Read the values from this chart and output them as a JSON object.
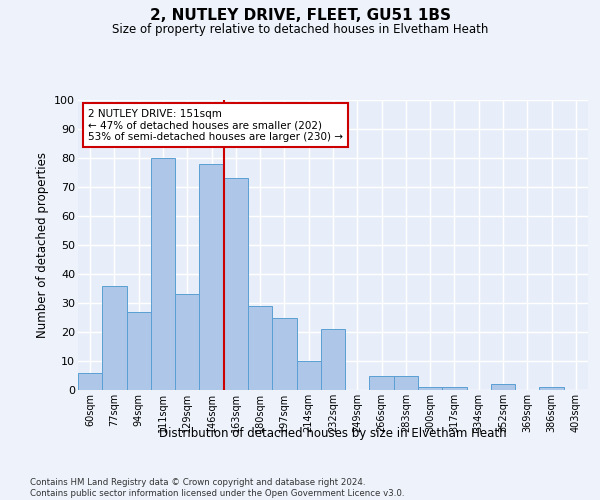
{
  "title1": "2, NUTLEY DRIVE, FLEET, GU51 1BS",
  "title2": "Size of property relative to detached houses in Elvetham Heath",
  "xlabel": "Distribution of detached houses by size in Elvetham Heath",
  "ylabel": "Number of detached properties",
  "bar_labels": [
    "60sqm",
    "77sqm",
    "94sqm",
    "111sqm",
    "129sqm",
    "146sqm",
    "163sqm",
    "180sqm",
    "197sqm",
    "214sqm",
    "232sqm",
    "249sqm",
    "266sqm",
    "283sqm",
    "300sqm",
    "317sqm",
    "334sqm",
    "352sqm",
    "369sqm",
    "386sqm",
    "403sqm"
  ],
  "bar_values": [
    6,
    36,
    27,
    80,
    33,
    78,
    73,
    29,
    25,
    10,
    21,
    0,
    5,
    5,
    1,
    1,
    0,
    2,
    0,
    1,
    0
  ],
  "bar_color": "#aec6e8",
  "bar_edge_color": "#5a9fd4",
  "vline_x": 5.5,
  "vline_color": "#cc0000",
  "annotation_text": "2 NUTLEY DRIVE: 151sqm\n← 47% of detached houses are smaller (202)\n53% of semi-detached houses are larger (230) →",
  "annotation_box_color": "#ffffff",
  "annotation_box_edge": "#cc0000",
  "ylim": [
    0,
    100
  ],
  "yticks": [
    0,
    10,
    20,
    30,
    40,
    50,
    60,
    70,
    80,
    90,
    100
  ],
  "fig_bg_color": "#edf2fb",
  "ax_bg_color": "#e8eef9",
  "grid_color": "#ffffff",
  "footer1": "Contains HM Land Registry data © Crown copyright and database right 2024.",
  "footer2": "Contains public sector information licensed under the Open Government Licence v3.0."
}
